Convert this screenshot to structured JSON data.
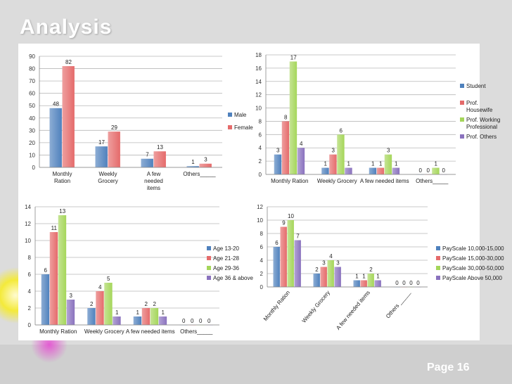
{
  "slide": {
    "title": "Analysis",
    "page": "Page 16"
  },
  "colors": {
    "blue": "#4f81bd",
    "red": "#e56b6b",
    "green": "#a5d65a",
    "purple": "#8a72be"
  },
  "chart_data": [
    {
      "type": "bar",
      "categories": [
        "Monthly Ration",
        "Weekly Grocery",
        "A few needed items",
        "Others_____"
      ],
      "series": [
        {
          "name": "Male",
          "values": [
            48,
            17,
            7,
            1
          ]
        },
        {
          "name": "Female",
          "values": [
            82,
            29,
            13,
            3
          ]
        }
      ],
      "ylim": [
        0,
        90
      ],
      "yticks": [
        0,
        10,
        20,
        30,
        40,
        50,
        60,
        70,
        80,
        90
      ],
      "grid": true,
      "legend": "right"
    },
    {
      "type": "bar",
      "categories": [
        "Monthly Ration",
        "Weekly Grocery",
        "A few needed items",
        "Others_____"
      ],
      "series": [
        {
          "name": "Student",
          "values": [
            3,
            1,
            1,
            0
          ]
        },
        {
          "name": "Prof. Housewife",
          "values": [
            8,
            3,
            1,
            0
          ]
        },
        {
          "name": "Prof. Working Professional",
          "values": [
            17,
            6,
            3,
            1
          ]
        },
        {
          "name": "Prof. Others",
          "values": [
            4,
            1,
            1,
            0
          ]
        }
      ],
      "ylim": [
        0,
        18
      ],
      "yticks": [
        0,
        2,
        4,
        6,
        8,
        10,
        12,
        14,
        16,
        18
      ],
      "grid": true,
      "legend": "right"
    },
    {
      "type": "bar",
      "categories": [
        "Monthly Ration",
        "Weekly Grocery",
        "A few needed items",
        "Others_____"
      ],
      "series": [
        {
          "name": "Age 13-20",
          "values": [
            6,
            2,
            1,
            0
          ]
        },
        {
          "name": "Age 21-28",
          "values": [
            11,
            4,
            2,
            0
          ]
        },
        {
          "name": "Age 29-36",
          "values": [
            13,
            5,
            2,
            0
          ]
        },
        {
          "name": "Age 36 & above",
          "values": [
            3,
            1,
            1,
            0
          ]
        }
      ],
      "ylim": [
        0,
        14
      ],
      "yticks": [
        0,
        2,
        4,
        6,
        8,
        10,
        12,
        14
      ],
      "grid": true,
      "legend": "right"
    },
    {
      "type": "bar",
      "categories": [
        "Monthly Ration",
        "Weekly Grocery",
        "A few needed items",
        "Others _____"
      ],
      "series": [
        {
          "name": "PayScale 10,000-15,000",
          "values": [
            6,
            2,
            1,
            0
          ]
        },
        {
          "name": "PayScale 15,000-30,000",
          "values": [
            9,
            3,
            1,
            0
          ]
        },
        {
          "name": "PayScale 30,000-50,000",
          "values": [
            10,
            4,
            2,
            0
          ]
        },
        {
          "name": "PayScale Above 50,000",
          "values": [
            7,
            3,
            1,
            0
          ]
        }
      ],
      "ylim": [
        0,
        12
      ],
      "yticks": [
        0,
        2,
        4,
        6,
        8,
        10,
        12
      ],
      "grid": true,
      "legend": "right",
      "xlabel_rotation": "rotated"
    }
  ]
}
